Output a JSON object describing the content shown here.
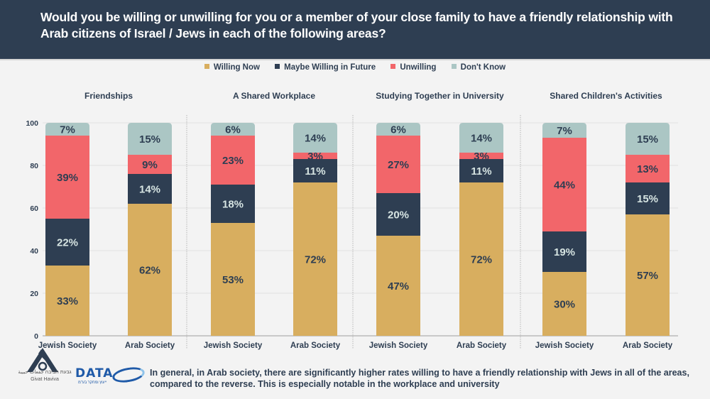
{
  "header": {
    "title": "Would you be willing or unwilling for you or a member of your close family to have a friendly relationship with Arab citizens of Israel / Jews in each of the following areas?"
  },
  "legend": [
    {
      "label": "Willing Now",
      "color": "#d8ae5f"
    },
    {
      "label": "Maybe Willing in Future",
      "color": "#2e3e52"
    },
    {
      "label": "Unwilling",
      "color": "#f2666a"
    },
    {
      "label": "Don't Know",
      "color": "#abc6c4"
    }
  ],
  "footer": {
    "text": "In general, in Arab society, there are significantly higher rates willing to have a friendly relationship with Jews in all of the areas, compared to the reverse. This is especially notable in the workplace and university",
    "logo_givat_haviva": "Givat Haviva",
    "logo_givat_haviva_hebrew_arabic": "גבעת חביבה جفعات حبيبة",
    "logo_data": "DATA",
    "logo_data_sub": "ייעוץ ומחקר בע\"מ"
  },
  "chart_data": {
    "type": "bar",
    "stacked": true,
    "title": "Would you be willing or unwilling for you or a member of your close family to have a friendly relationship with Arab citizens of Israel / Jews in each of the following areas?",
    "ylim": [
      0,
      100
    ],
    "yticks": [
      0,
      20,
      40,
      60,
      80,
      100
    ],
    "grid": true,
    "legend_position": "top-center",
    "series_names": [
      "Willing Now",
      "Maybe Willing in Future",
      "Unwilling",
      "Don't Know"
    ],
    "series_colors": [
      "#d8ae5f",
      "#2e3e52",
      "#f2666a",
      "#abc6c4"
    ],
    "label_colors": [
      "#2e3e52",
      "#d6e4e2",
      "#2e3e52",
      "#2e3e52"
    ],
    "panels": [
      {
        "title": "Friendships",
        "categories": [
          "Jewish Society",
          "Arab Society"
        ],
        "series": [
          {
            "name": "Willing Now",
            "values": [
              33,
              62
            ]
          },
          {
            "name": "Maybe Willing in Future",
            "values": [
              22,
              14
            ]
          },
          {
            "name": "Unwilling",
            "values": [
              39,
              9
            ]
          },
          {
            "name": "Don't Know",
            "values": [
              7,
              15
            ]
          }
        ]
      },
      {
        "title": "A Shared Workplace",
        "categories": [
          "Jewish Society",
          "Arab Society"
        ],
        "series": [
          {
            "name": "Willing Now",
            "values": [
              53,
              72
            ]
          },
          {
            "name": "Maybe Willing in Future",
            "values": [
              18,
              11
            ]
          },
          {
            "name": "Unwilling",
            "values": [
              23,
              3
            ]
          },
          {
            "name": "Don't Know",
            "values": [
              6,
              14
            ]
          }
        ]
      },
      {
        "title": "Studying Together in University",
        "categories": [
          "Jewish Society",
          "Arab Society"
        ],
        "series": [
          {
            "name": "Willing Now",
            "values": [
              47,
              72
            ]
          },
          {
            "name": "Maybe Willing in Future",
            "values": [
              20,
              11
            ]
          },
          {
            "name": "Unwilling",
            "values": [
              27,
              3
            ]
          },
          {
            "name": "Don't Know",
            "values": [
              6,
              14
            ]
          }
        ]
      },
      {
        "title": "Shared Children's Activities",
        "categories": [
          "Jewish Society",
          "Arab Society"
        ],
        "series": [
          {
            "name": "Willing Now",
            "values": [
              30,
              57
            ]
          },
          {
            "name": "Maybe Willing in Future",
            "values": [
              19,
              15
            ]
          },
          {
            "name": "Unwilling",
            "values": [
              44,
              13
            ]
          },
          {
            "name": "Don't Know",
            "values": [
              7,
              15
            ]
          }
        ]
      }
    ]
  }
}
